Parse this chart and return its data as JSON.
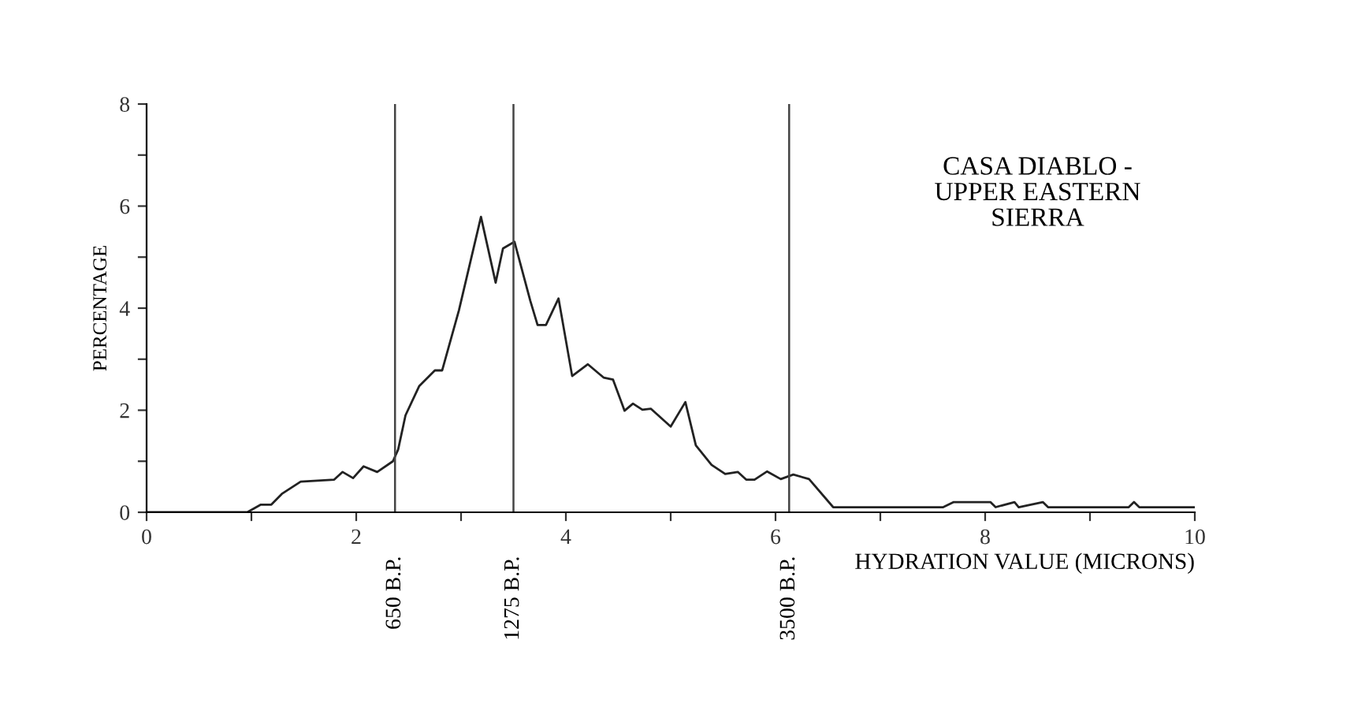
{
  "chart_data": {
    "type": "line",
    "title": "CASA DIABLO -\nUPPER EASTERN\nSIERRA",
    "xlabel": "HYDRATION VALUE (MICRONS)",
    "ylabel": "PERCENTAGE",
    "x": [
      0,
      0.96,
      1.09,
      1.19,
      1.29,
      1.47,
      1.79,
      1.87,
      1.97,
      2.07,
      2.2,
      2.35,
      2.4,
      2.47,
      2.6,
      2.75,
      2.82,
      2.98,
      3.19,
      3.33,
      3.4,
      3.51,
      3.66,
      3.73,
      3.81,
      3.93,
      4.06,
      4.21,
      4.36,
      4.45,
      4.56,
      4.64,
      4.73,
      4.81,
      5.0,
      5.14,
      5.24,
      5.39,
      5.52,
      5.64,
      5.72,
      5.8,
      5.92,
      6.05,
      6.17,
      6.32,
      6.55,
      7.6,
      7.7,
      8.05,
      8.1,
      8.28,
      8.32,
      8.55,
      8.6,
      9.37,
      9.42,
      9.47,
      10
    ],
    "series": [
      {
        "color": "#222222",
        "values": [
          0,
          0,
          0.15,
          0.15,
          0.36,
          0.6,
          0.64,
          0.79,
          0.67,
          0.9,
          0.79,
          1.0,
          1.23,
          1.9,
          2.47,
          2.78,
          2.78,
          3.96,
          5.79,
          4.5,
          5.17,
          5.3,
          4.15,
          3.67,
          3.67,
          4.19,
          2.67,
          2.9,
          2.64,
          2.6,
          1.99,
          2.13,
          2.01,
          2.03,
          1.68,
          2.16,
          1.31,
          0.93,
          0.75,
          0.79,
          0.64,
          0.64,
          0.8,
          0.65,
          0.74,
          0.65,
          0.1,
          0.1,
          0.2,
          0.2,
          0.1,
          0.2,
          0.1,
          0.2,
          0.1,
          0.1,
          0.2,
          0.1,
          0.1
        ]
      }
    ],
    "xlim": [
      0,
      10
    ],
    "ylim": [
      0,
      8
    ],
    "xticks": [
      0,
      {
        "value": 1,
        "label": null
      },
      2,
      {
        "value": 3,
        "label": null
      },
      4,
      {
        "value": 5,
        "label": null
      },
      6,
      {
        "value": 7,
        "label": null
      },
      8,
      {
        "value": 9,
        "label": null
      },
      10
    ],
    "yticks": [
      0,
      {
        "value": 1,
        "label": null
      },
      2,
      {
        "value": 3,
        "label": null
      },
      4,
      {
        "value": 5,
        "label": null
      },
      6,
      {
        "value": 7,
        "label": null
      },
      8
    ],
    "ref_lines": [
      {
        "axis": "x",
        "value": 2.37,
        "label": "650 B.P.",
        "color": "#444444"
      },
      {
        "axis": "x",
        "value": 3.5,
        "label": "1275 B.P.",
        "color": "#444444"
      },
      {
        "axis": "x",
        "value": 6.13,
        "label": "3500 B.P.",
        "color": "#444444"
      }
    ],
    "grid": false,
    "legend": false,
    "marker": "none",
    "line_style": "solid"
  }
}
